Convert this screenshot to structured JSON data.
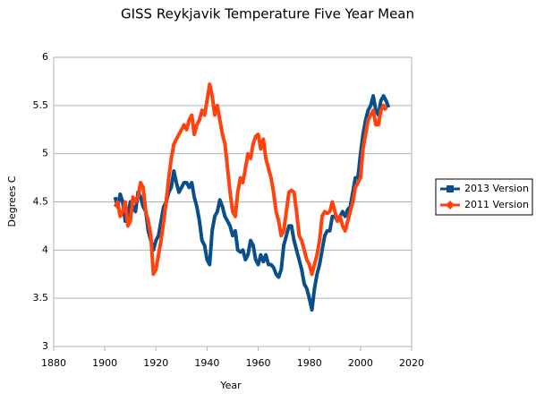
{
  "chart_data": {
    "type": "line",
    "title": "GISS Reykjavik Temperature Five Year Mean",
    "x_label": "Year",
    "y_label": "Degrees C",
    "x": [
      1904,
      1905,
      1906,
      1907,
      1908,
      1909,
      1910,
      1911,
      1912,
      1913,
      1914,
      1915,
      1916,
      1917,
      1918,
      1919,
      1920,
      1921,
      1922,
      1923,
      1924,
      1925,
      1926,
      1927,
      1928,
      1929,
      1930,
      1931,
      1932,
      1933,
      1934,
      1935,
      1936,
      1937,
      1938,
      1939,
      1940,
      1941,
      1942,
      1943,
      1944,
      1945,
      1946,
      1947,
      1948,
      1949,
      1950,
      1951,
      1952,
      1953,
      1954,
      1955,
      1956,
      1957,
      1958,
      1959,
      1960,
      1961,
      1962,
      1963,
      1964,
      1965,
      1966,
      1967,
      1968,
      1969,
      1970,
      1971,
      1972,
      1973,
      1974,
      1975,
      1976,
      1977,
      1978,
      1979,
      1980,
      1981,
      1982,
      1983,
      1984,
      1985,
      1986,
      1987,
      1988,
      1989,
      1990,
      1991,
      1992,
      1993,
      1994,
      1995,
      1996,
      1997,
      1998,
      1999,
      2000,
      2001,
      2002,
      2003,
      2004,
      2005,
      2006,
      2007,
      2008,
      2009,
      2010,
      2011
    ],
    "series": [
      {
        "name": "2013 Version",
        "color": "#0b4f8a",
        "marker": "square",
        "values": [
          4.55,
          4.45,
          4.58,
          4.5,
          4.3,
          4.35,
          4.5,
          4.45,
          4.4,
          4.6,
          4.55,
          4.45,
          4.4,
          4.2,
          4.1,
          4.0,
          4.1,
          4.15,
          4.3,
          4.45,
          4.5,
          4.6,
          4.65,
          4.82,
          4.7,
          4.6,
          4.65,
          4.7,
          4.7,
          4.65,
          4.7,
          4.55,
          4.45,
          4.3,
          4.1,
          4.05,
          3.9,
          3.85,
          4.2,
          4.35,
          4.4,
          4.52,
          4.45,
          4.35,
          4.3,
          4.25,
          4.15,
          4.2,
          4.0,
          3.98,
          4.0,
          3.9,
          3.95,
          4.1,
          4.05,
          3.9,
          3.85,
          3.95,
          3.88,
          3.95,
          3.85,
          3.85,
          3.82,
          3.75,
          3.72,
          3.8,
          4.05,
          4.15,
          4.25,
          4.25,
          4.1,
          4.0,
          3.9,
          3.8,
          3.65,
          3.6,
          3.5,
          3.38,
          3.6,
          3.75,
          3.85,
          4.0,
          4.15,
          4.2,
          4.2,
          4.35,
          4.35,
          4.3,
          4.35,
          4.4,
          4.35,
          4.42,
          4.45,
          4.6,
          4.75,
          4.75,
          5.0,
          5.2,
          5.35,
          5.45,
          5.5,
          5.6,
          5.45,
          5.4,
          5.55,
          5.6,
          5.55,
          5.48
        ]
      },
      {
        "name": "2011 Version",
        "color": "#ff420e",
        "marker": "diamond",
        "values": [
          4.45,
          4.5,
          4.35,
          4.4,
          4.5,
          4.25,
          4.3,
          4.55,
          4.5,
          4.55,
          4.7,
          4.65,
          4.4,
          4.3,
          4.15,
          3.75,
          3.8,
          3.95,
          4.1,
          4.3,
          4.5,
          4.75,
          4.95,
          5.1,
          5.15,
          5.2,
          5.25,
          5.3,
          5.25,
          5.35,
          5.4,
          5.2,
          5.3,
          5.35,
          5.45,
          5.4,
          5.55,
          5.72,
          5.6,
          5.4,
          5.5,
          5.35,
          5.2,
          5.1,
          4.85,
          4.6,
          4.4,
          4.35,
          4.6,
          4.75,
          4.7,
          4.85,
          5.0,
          4.95,
          5.1,
          5.18,
          5.2,
          5.05,
          5.15,
          4.95,
          4.85,
          4.75,
          4.6,
          4.4,
          4.3,
          4.15,
          4.2,
          4.4,
          4.6,
          4.62,
          4.6,
          4.4,
          4.15,
          4.1,
          4.0,
          3.9,
          3.85,
          3.75,
          3.85,
          3.95,
          4.1,
          4.35,
          4.4,
          4.38,
          4.4,
          4.5,
          4.4,
          4.3,
          4.35,
          4.25,
          4.2,
          4.3,
          4.4,
          4.5,
          4.65,
          4.7,
          4.75,
          5.05,
          5.2,
          5.35,
          5.4,
          5.45,
          5.3,
          5.3,
          5.45,
          5.5,
          5.45,
          null
        ]
      }
    ],
    "xlim": [
      1880,
      2020
    ],
    "xticks": [
      1880,
      1900,
      1920,
      1940,
      1960,
      1980,
      2000,
      2020
    ],
    "ylim": [
      3,
      6
    ],
    "yticks": [
      3,
      3.5,
      4,
      4.5,
      5,
      5.5,
      6
    ],
    "grid": true,
    "legend": "right"
  }
}
